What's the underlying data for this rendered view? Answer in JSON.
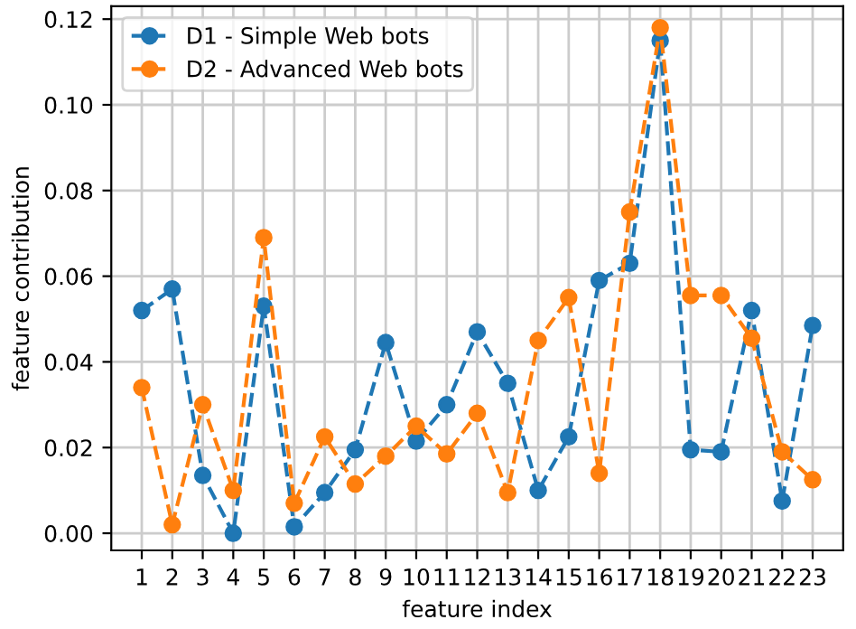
{
  "chart_data": {
    "type": "line",
    "xlabel": "feature index",
    "ylabel": "feature contribution",
    "x": [
      1,
      2,
      3,
      4,
      5,
      6,
      7,
      8,
      9,
      10,
      11,
      12,
      13,
      14,
      15,
      16,
      17,
      18,
      19,
      20,
      21,
      22,
      23
    ],
    "series": [
      {
        "name": "D1 - Simple Web bots",
        "color": "#1f77b4",
        "values": [
          0.052,
          0.057,
          0.0135,
          0.0,
          0.053,
          0.0015,
          0.0095,
          0.0195,
          0.0445,
          0.0215,
          0.03,
          0.047,
          0.035,
          0.01,
          0.0225,
          0.059,
          0.063,
          0.115,
          0.0195,
          0.019,
          0.052,
          0.0075,
          0.0485
        ]
      },
      {
        "name": "D2 - Advanced Web bots",
        "color": "#ff7f0e",
        "values": [
          0.034,
          0.002,
          0.03,
          0.01,
          0.069,
          0.007,
          0.0225,
          0.0115,
          0.018,
          0.025,
          0.0185,
          0.028,
          0.0095,
          0.045,
          0.055,
          0.014,
          0.075,
          0.118,
          0.0555,
          0.0555,
          0.0455,
          0.019,
          0.0125
        ]
      }
    ],
    "xlim": [
      0,
      24
    ],
    "xticks": [
      1,
      2,
      3,
      4,
      5,
      6,
      7,
      8,
      9,
      10,
      11,
      12,
      13,
      14,
      15,
      16,
      17,
      18,
      19,
      20,
      21,
      22,
      23
    ],
    "ylim": [
      -0.004,
      0.123
    ],
    "yticks": [
      {
        "value": 0,
        "label": "0.00"
      },
      {
        "value": 0.02,
        "label": "0.02"
      },
      {
        "value": 0.04,
        "label": "0.04"
      },
      {
        "value": 0.06,
        "label": "0.06"
      },
      {
        "value": 0.08,
        "label": "0.08"
      },
      {
        "value": 0.1,
        "label": "0.10"
      },
      {
        "value": 0.12,
        "label": "0.12"
      }
    ],
    "grid": true,
    "legend": "top left",
    "marker": "circle",
    "line_style": "dashed"
  }
}
